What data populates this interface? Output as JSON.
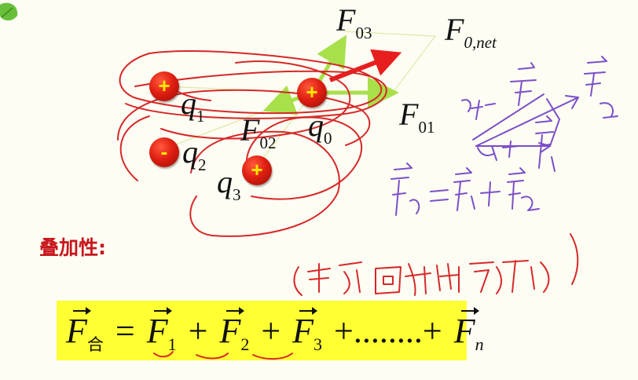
{
  "labels": {
    "f03": {
      "sym": "F",
      "sub": "03"
    },
    "fnet": {
      "sym": "F",
      "sub": "0,net"
    },
    "f01": {
      "sym": "F",
      "sub": "01"
    },
    "f02": {
      "sym": "F",
      "sub": "02"
    },
    "q1": {
      "sym": "q",
      "sub": "1"
    },
    "q2": {
      "sym": "q",
      "sub": "2"
    },
    "q3": {
      "sym": "q",
      "sub": "3"
    },
    "q0": {
      "sym": "q",
      "sub": "0"
    }
  },
  "charges": {
    "q1": "+",
    "q2": "-",
    "q3": "+",
    "q0": "+"
  },
  "heading": "叠加性:",
  "formula": {
    "lhs_sym": "F",
    "lhs_sub": "合",
    "eq": "=",
    "t1_sym": "F",
    "t1_sub": "1",
    "plus1": "+",
    "t2_sym": "F",
    "t2_sub": "2",
    "plus2": "+",
    "t3_sym": "F",
    "t3_sub": "3",
    "dots": "+........+",
    "tn_sym": "F",
    "tn_sub": "n"
  },
  "colors": {
    "charge": "#e01f12",
    "charge_sign": "#ffe600",
    "force_arrow": "#a8e04a",
    "net_arrow": "#e81e1e",
    "heading": "#c8161d",
    "highlight": "#ffff33",
    "ink_red": "#d62828",
    "ink_purple": "#7b4fc9",
    "leaf": "#6abf3a"
  }
}
